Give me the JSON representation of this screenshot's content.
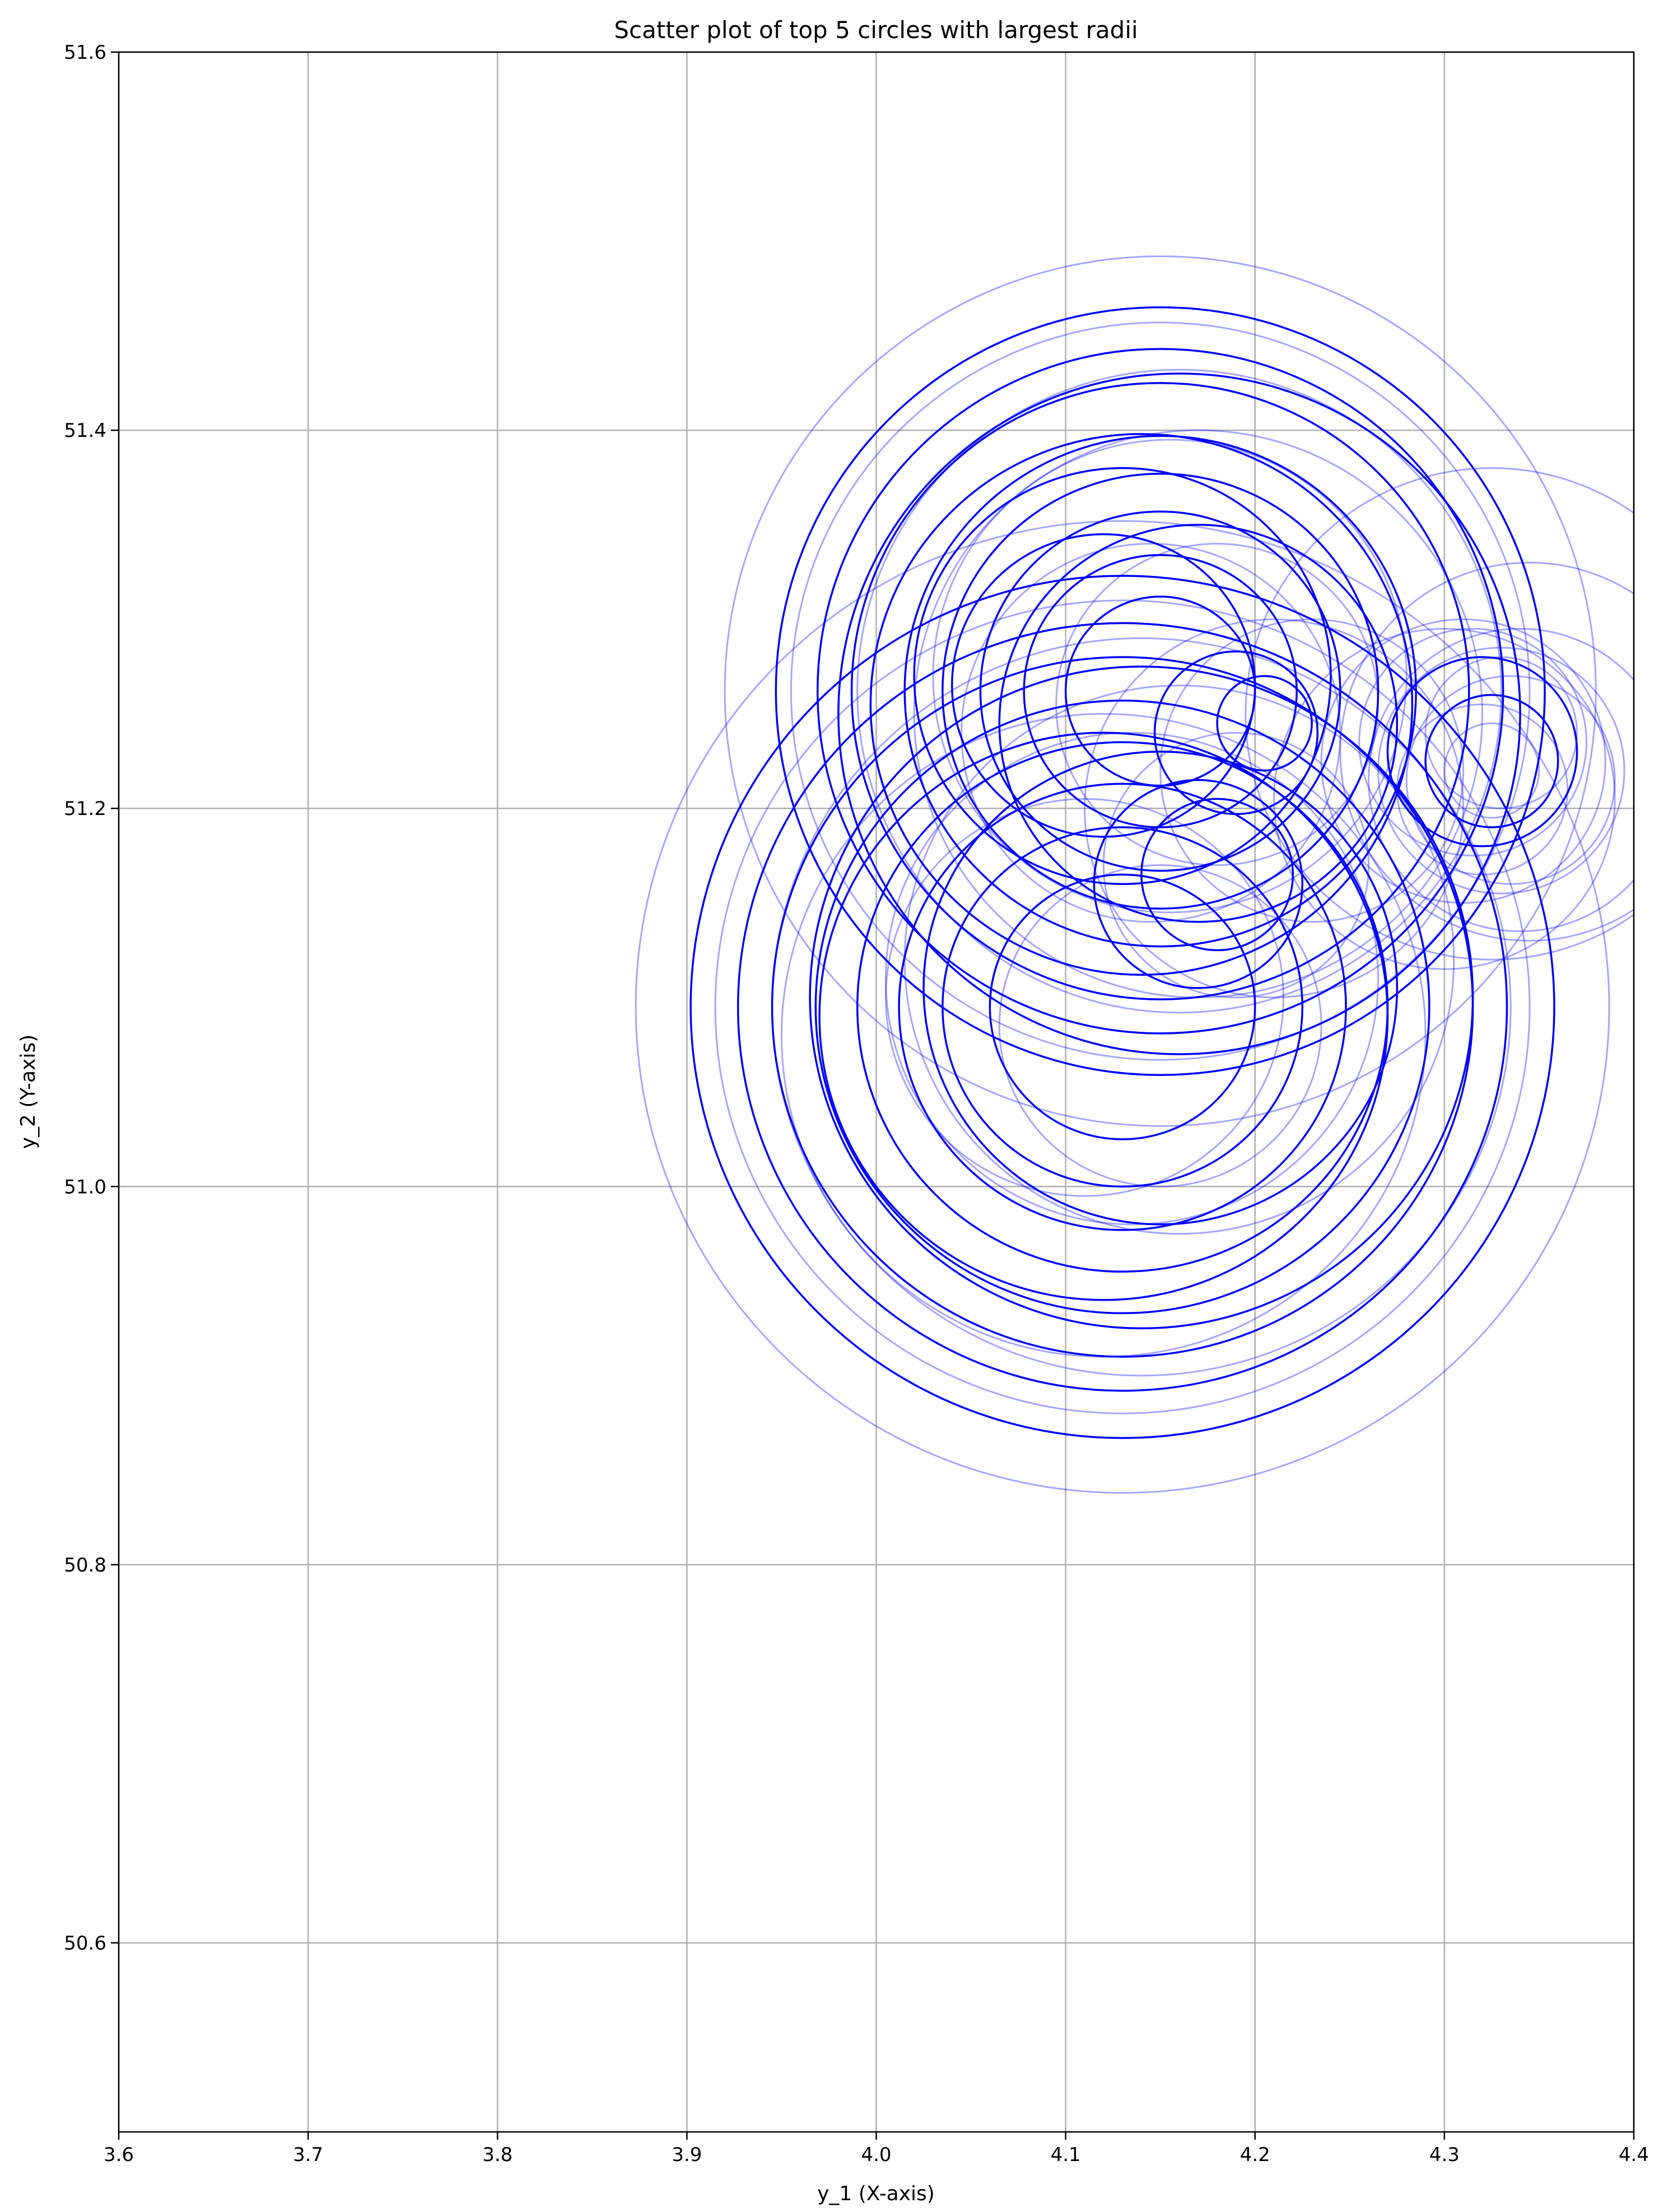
{
  "chart_data": {
    "type": "scatter",
    "title": "Scatter plot of top 5 circles with largest radii",
    "xlabel": "y_1 (X-axis)",
    "ylabel": "y_2 (Y-axis)",
    "xlim": [
      3.6,
      4.4
    ],
    "ylim": [
      50.5,
      51.6
    ],
    "xticks": [
      "3.6",
      "3.7",
      "3.8",
      "3.9",
      "4.0",
      "4.1",
      "4.2",
      "4.3",
      "4.4"
    ],
    "yticks": [
      "50.6",
      "50.8",
      "51.0",
      "51.2",
      "51.4",
      "51.6"
    ],
    "grid": true,
    "colors": {
      "circle": "#0000ff",
      "grid": "#b0b0b0",
      "axes": "#000000"
    },
    "series": [
      {
        "style": "solid",
        "circles": [
          {
            "x": 4.15,
            "y": 51.262,
            "r": 0.203
          },
          {
            "x": 4.15,
            "y": 51.262,
            "r": 0.181
          },
          {
            "x": 4.15,
            "y": 51.262,
            "r": 0.163
          },
          {
            "x": 4.15,
            "y": 51.262,
            "r": 0.135
          },
          {
            "x": 4.15,
            "y": 51.262,
            "r": 0.115
          },
          {
            "x": 4.15,
            "y": 51.262,
            "r": 0.095
          },
          {
            "x": 4.15,
            "y": 51.262,
            "r": 0.072
          },
          {
            "x": 4.15,
            "y": 51.262,
            "r": 0.05
          },
          {
            "x": 4.16,
            "y": 51.25,
            "r": 0.18
          },
          {
            "x": 4.14,
            "y": 51.255,
            "r": 0.143
          },
          {
            "x": 4.17,
            "y": 51.245,
            "r": 0.105
          },
          {
            "x": 4.13,
            "y": 51.27,
            "r": 0.11
          },
          {
            "x": 4.12,
            "y": 51.265,
            "r": 0.08
          },
          {
            "x": 4.19,
            "y": 51.24,
            "r": 0.043
          },
          {
            "x": 4.205,
            "y": 51.245,
            "r": 0.025
          },
          {
            "x": 4.13,
            "y": 51.095,
            "r": 0.228
          },
          {
            "x": 4.13,
            "y": 51.095,
            "r": 0.203
          },
          {
            "x": 4.13,
            "y": 51.095,
            "r": 0.185
          },
          {
            "x": 4.13,
            "y": 51.095,
            "r": 0.162
          },
          {
            "x": 4.13,
            "y": 51.095,
            "r": 0.14
          },
          {
            "x": 4.13,
            "y": 51.095,
            "r": 0.118
          },
          {
            "x": 4.13,
            "y": 51.095,
            "r": 0.095
          },
          {
            "x": 4.13,
            "y": 51.095,
            "r": 0.07
          },
          {
            "x": 4.14,
            "y": 51.1,
            "r": 0.175
          },
          {
            "x": 4.12,
            "y": 51.09,
            "r": 0.15
          },
          {
            "x": 4.15,
            "y": 51.105,
            "r": 0.125
          },
          {
            "x": 4.18,
            "y": 51.165,
            "r": 0.04
          },
          {
            "x": 4.17,
            "y": 51.16,
            "r": 0.055
          },
          {
            "x": 4.32,
            "y": 51.23,
            "r": 0.05
          },
          {
            "x": 4.325,
            "y": 51.225,
            "r": 0.035
          }
        ]
      },
      {
        "style": "faint",
        "circles": [
          {
            "x": 4.15,
            "y": 51.262,
            "r": 0.23
          },
          {
            "x": 4.13,
            "y": 51.095,
            "r": 0.257
          },
          {
            "x": 4.13,
            "y": 51.095,
            "r": 0.215
          },
          {
            "x": 4.14,
            "y": 51.095,
            "r": 0.195
          },
          {
            "x": 4.15,
            "y": 51.262,
            "r": 0.195
          },
          {
            "x": 4.16,
            "y": 51.262,
            "r": 0.17
          },
          {
            "x": 4.17,
            "y": 51.25,
            "r": 0.15
          },
          {
            "x": 4.155,
            "y": 51.27,
            "r": 0.125
          },
          {
            "x": 4.145,
            "y": 51.24,
            "r": 0.1
          },
          {
            "x": 4.18,
            "y": 51.255,
            "r": 0.085
          },
          {
            "x": 4.12,
            "y": 51.08,
            "r": 0.17
          },
          {
            "x": 4.135,
            "y": 51.11,
            "r": 0.13
          },
          {
            "x": 4.11,
            "y": 51.1,
            "r": 0.105
          },
          {
            "x": 4.15,
            "y": 51.085,
            "r": 0.085
          },
          {
            "x": 4.16,
            "y": 51.12,
            "r": 0.145
          },
          {
            "x": 4.19,
            "y": 51.17,
            "r": 0.07
          },
          {
            "x": 4.21,
            "y": 51.2,
            "r": 0.1
          },
          {
            "x": 4.23,
            "y": 51.22,
            "r": 0.08
          },
          {
            "x": 4.33,
            "y": 51.22,
            "r": 0.065
          },
          {
            "x": 4.335,
            "y": 51.215,
            "r": 0.055
          },
          {
            "x": 4.315,
            "y": 51.235,
            "r": 0.06
          },
          {
            "x": 4.32,
            "y": 51.21,
            "r": 0.045
          },
          {
            "x": 4.33,
            "y": 51.24,
            "r": 0.04
          },
          {
            "x": 4.325,
            "y": 51.22,
            "r": 0.025
          },
          {
            "x": 4.31,
            "y": 51.225,
            "r": 0.075
          },
          {
            "x": 4.345,
            "y": 51.23,
            "r": 0.1
          },
          {
            "x": 4.34,
            "y": 51.215,
            "r": 0.08
          },
          {
            "x": 4.325,
            "y": 51.25,
            "r": 0.13
          },
          {
            "x": 4.3,
            "y": 51.205,
            "r": 0.09
          }
        ]
      }
    ]
  }
}
